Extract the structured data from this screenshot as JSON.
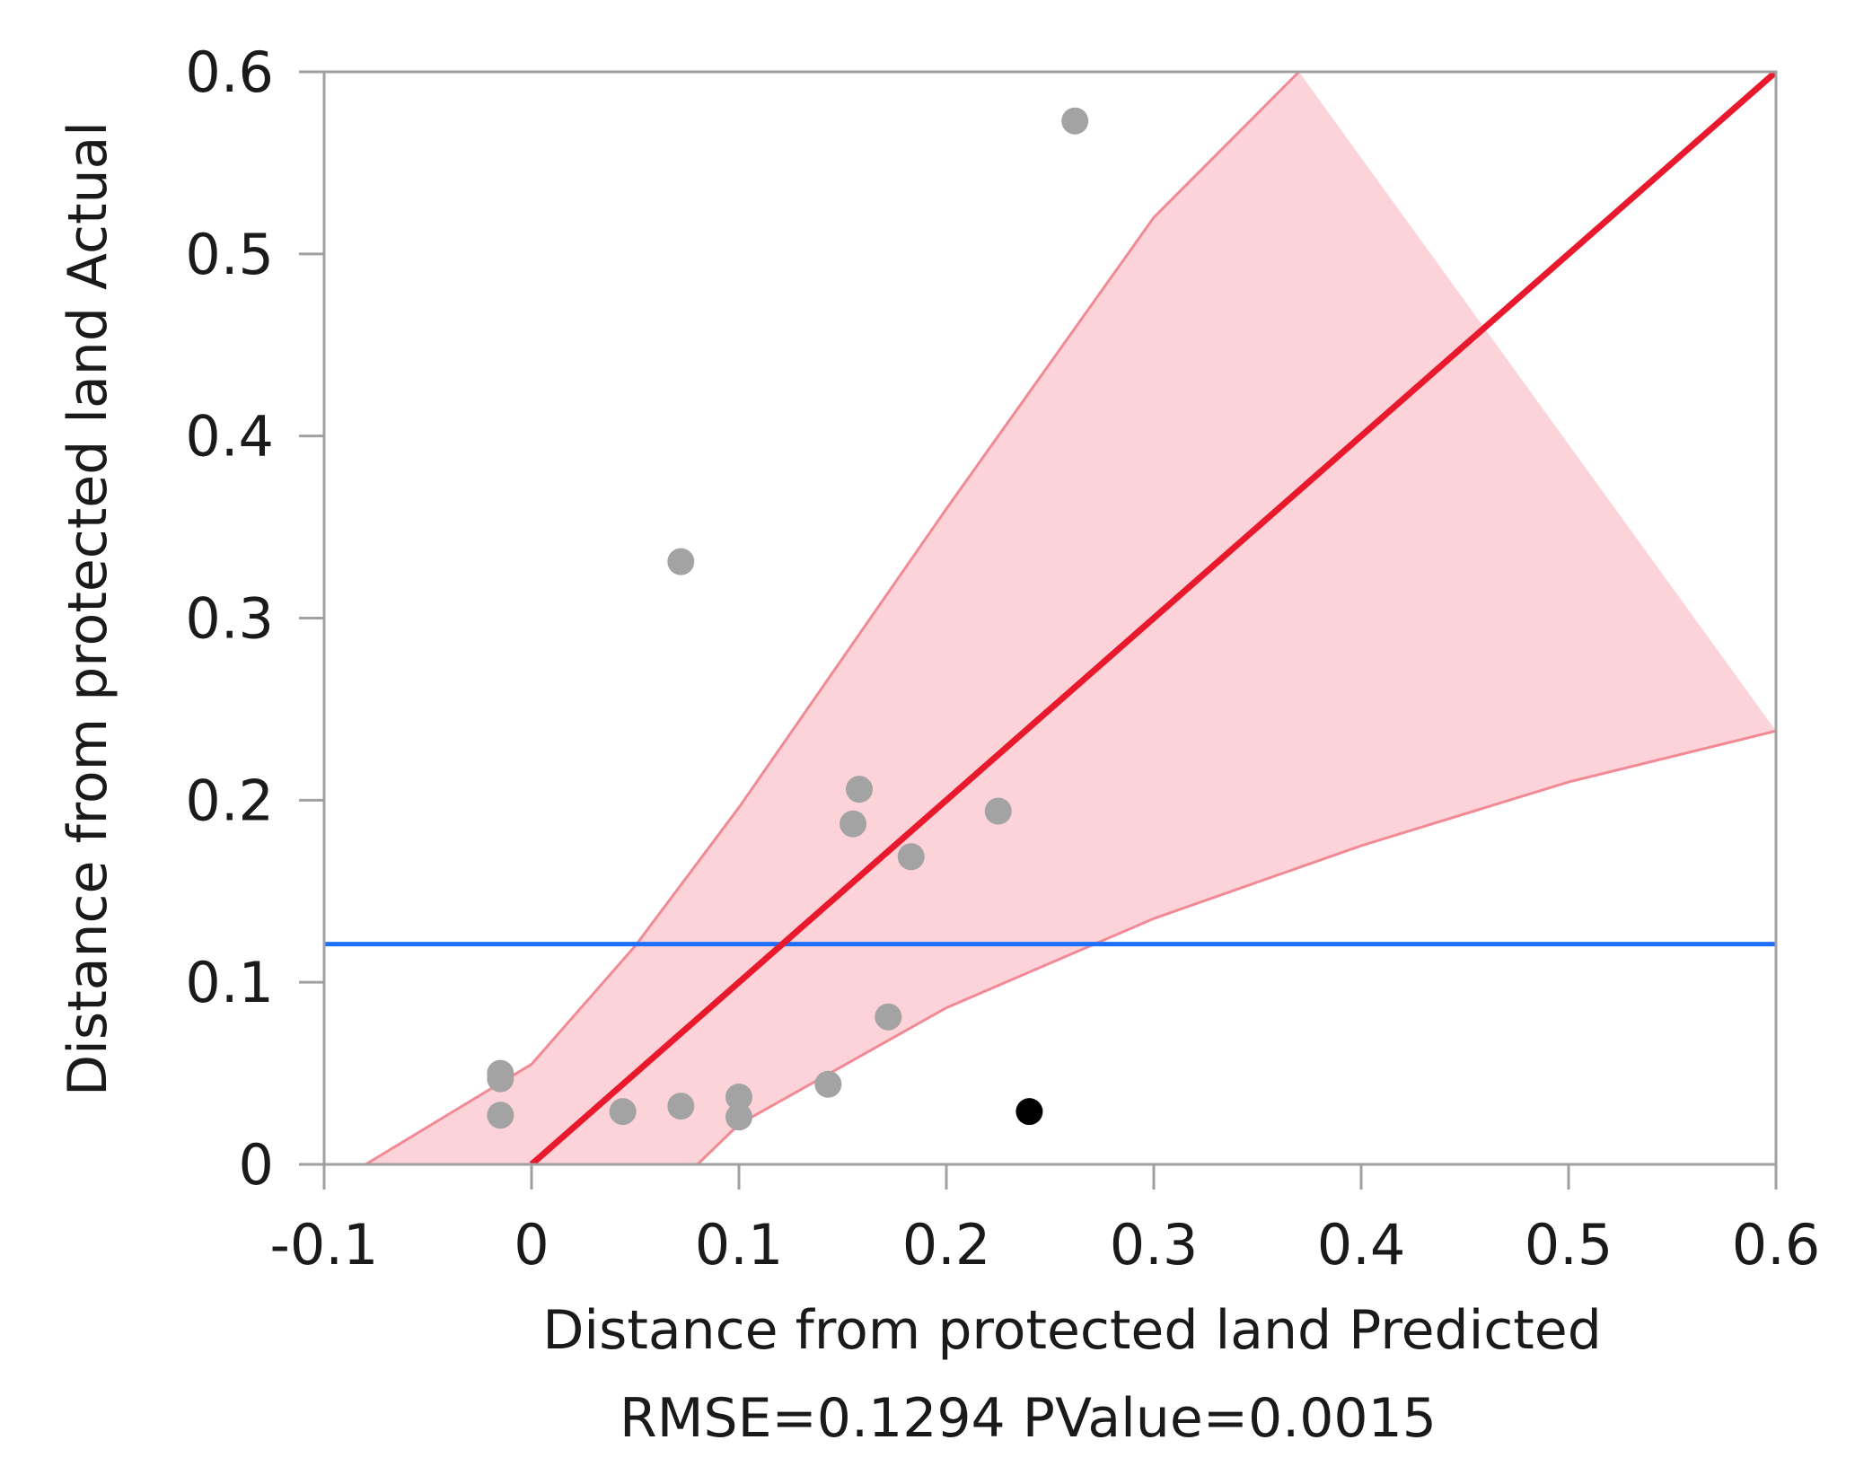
{
  "chart_data": {
    "type": "scatter",
    "xlabel": "Distance from protected land Predicted",
    "ylabel": "Distance from protected land Actual",
    "stats": "RMSE=0.1294 PValue=0.0015",
    "xlim": [
      -0.1,
      0.6
    ],
    "ylim": [
      0,
      0.6
    ],
    "x_ticks": [
      -0.1,
      0,
      0.1,
      0.2,
      0.3,
      0.4,
      0.5,
      0.6
    ],
    "x_tick_labels": [
      "-0.1",
      "0",
      "0.1",
      "0.2",
      "0.3",
      "0.4",
      "0.5",
      "0.6"
    ],
    "y_ticks": [
      0,
      0.1,
      0.2,
      0.3,
      0.4,
      0.5,
      0.6
    ],
    "y_tick_labels": [
      "0",
      "0.1",
      "0.2",
      "0.3",
      "0.4",
      "0.5",
      "0.6"
    ],
    "mean_line": {
      "y": 0.121,
      "color": "#1f6fff"
    },
    "fit_line": {
      "x": [
        0,
        0.6
      ],
      "y": [
        0,
        0.6
      ],
      "color": "#e8192c"
    },
    "confidence_band": {
      "color": "#fbd3d8",
      "edge_color": "#f28a96",
      "upper": [
        [
          -0.08,
          0
        ],
        [
          0,
          0.055
        ],
        [
          0.05,
          0.12
        ],
        [
          0.1,
          0.196
        ],
        [
          0.2,
          0.36
        ],
        [
          0.3,
          0.52
        ],
        [
          0.37,
          0.6
        ]
      ],
      "lower": [
        [
          0.08,
          0
        ],
        [
          0.1,
          0.022
        ],
        [
          0.2,
          0.086
        ],
        [
          0.3,
          0.135
        ],
        [
          0.4,
          0.175
        ],
        [
          0.5,
          0.21
        ],
        [
          0.6,
          0.238
        ]
      ]
    },
    "series": [
      {
        "marker_color": "#a3a3a3",
        "points": [
          [
            0.262,
            0.573
          ],
          [
            0.072,
            0.331
          ],
          [
            0.158,
            0.206
          ],
          [
            0.155,
            0.187
          ],
          [
            0.225,
            0.194
          ],
          [
            0.183,
            0.169
          ],
          [
            0.172,
            0.081
          ],
          [
            0.143,
            0.044
          ],
          [
            -0.015,
            0.05
          ],
          [
            -0.015,
            0.047
          ],
          [
            -0.015,
            0.027
          ],
          [
            0.044,
            0.029
          ],
          [
            0.072,
            0.032
          ],
          [
            0.1,
            0.037
          ],
          [
            0.1,
            0.026
          ]
        ]
      },
      {
        "marker_color": "#000000",
        "points": [
          [
            0.24,
            0.029
          ]
        ]
      }
    ]
  }
}
